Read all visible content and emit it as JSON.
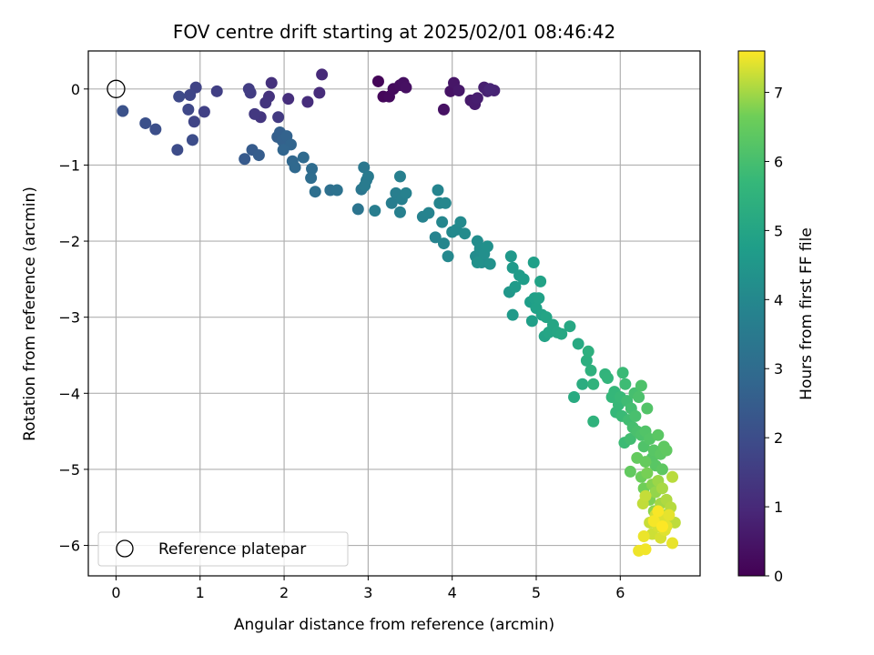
{
  "chart_data": {
    "type": "scatter",
    "title": "FOV centre drift starting at 2025/02/01 08:46:42",
    "xlabel": "Angular distance from reference (arcmin)",
    "ylabel": "Rotation from reference (arcmin)",
    "xlim": [
      -0.33,
      6.95
    ],
    "ylim": [
      -6.4,
      0.5
    ],
    "xticks": [
      0,
      1,
      2,
      3,
      4,
      5,
      6
    ],
    "yticks": [
      0,
      -1,
      -2,
      -3,
      -4,
      -5,
      -6
    ],
    "grid": true,
    "legend": {
      "placement": "bottom-left",
      "entries": [
        "Reference platepar"
      ]
    },
    "reference_point": {
      "x": 0,
      "y": 0
    },
    "colorbar": {
      "label": "Hours from first FF file",
      "colormap": "viridis",
      "range": [
        0,
        7.6
      ],
      "ticks": [
        0,
        1,
        2,
        3,
        4,
        5,
        6,
        7
      ]
    },
    "points": [
      {
        "x": 3.12,
        "y": 0.1,
        "t": 0.1
      },
      {
        "x": 3.18,
        "y": -0.1,
        "t": 0.15
      },
      {
        "x": 3.25,
        "y": -0.1,
        "t": 0.2
      },
      {
        "x": 3.3,
        "y": 0.0,
        "t": 0.25
      },
      {
        "x": 3.38,
        "y": 0.05,
        "t": 0.3
      },
      {
        "x": 3.42,
        "y": 0.08,
        "t": 0.33
      },
      {
        "x": 3.45,
        "y": 0.02,
        "t": 0.36
      },
      {
        "x": 3.9,
        "y": -0.27,
        "t": 0.4
      },
      {
        "x": 3.98,
        "y": -0.03,
        "t": 0.45
      },
      {
        "x": 4.02,
        "y": 0.08,
        "t": 0.5
      },
      {
        "x": 4.08,
        "y": -0.02,
        "t": 0.55
      },
      {
        "x": 4.22,
        "y": -0.15,
        "t": 0.6
      },
      {
        "x": 4.27,
        "y": -0.2,
        "t": 0.65
      },
      {
        "x": 4.3,
        "y": -0.12,
        "t": 0.7
      },
      {
        "x": 4.38,
        "y": 0.02,
        "t": 0.75
      },
      {
        "x": 4.42,
        "y": -0.03,
        "t": 0.8
      },
      {
        "x": 4.5,
        "y": -0.02,
        "t": 0.85
      },
      {
        "x": 4.45,
        "y": 0.0,
        "t": 0.9
      },
      {
        "x": 2.45,
        "y": 0.19,
        "t": 1.0
      },
      {
        "x": 2.42,
        "y": -0.05,
        "t": 1.05
      },
      {
        "x": 2.28,
        "y": -0.17,
        "t": 1.1
      },
      {
        "x": 2.05,
        "y": -0.13,
        "t": 1.15
      },
      {
        "x": 1.85,
        "y": 0.08,
        "t": 1.2
      },
      {
        "x": 1.82,
        "y": -0.1,
        "t": 1.25
      },
      {
        "x": 1.78,
        "y": -0.18,
        "t": 1.3
      },
      {
        "x": 1.72,
        "y": -0.37,
        "t": 1.35
      },
      {
        "x": 1.65,
        "y": -0.33,
        "t": 1.4
      },
      {
        "x": 1.93,
        "y": -0.37,
        "t": 1.45
      },
      {
        "x": 1.6,
        "y": -0.05,
        "t": 1.5
      },
      {
        "x": 1.58,
        "y": 0.0,
        "t": 1.55
      },
      {
        "x": 1.2,
        "y": -0.03,
        "t": 1.6
      },
      {
        "x": 1.05,
        "y": -0.3,
        "t": 1.65
      },
      {
        "x": 0.95,
        "y": 0.02,
        "t": 1.7
      },
      {
        "x": 0.93,
        "y": -0.43,
        "t": 1.75
      },
      {
        "x": 0.88,
        "y": -0.08,
        "t": 1.8
      },
      {
        "x": 0.86,
        "y": -0.27,
        "t": 1.85
      },
      {
        "x": 0.75,
        "y": -0.1,
        "t": 1.9
      },
      {
        "x": 0.73,
        "y": -0.8,
        "t": 1.95
      },
      {
        "x": 0.91,
        "y": -0.67,
        "t": 2.0
      },
      {
        "x": 0.47,
        "y": -0.53,
        "t": 2.05
      },
      {
        "x": 0.35,
        "y": -0.45,
        "t": 2.1
      },
      {
        "x": 0.08,
        "y": -0.29,
        "t": 2.15
      },
      {
        "x": 1.53,
        "y": -0.92,
        "t": 2.4
      },
      {
        "x": 1.62,
        "y": -0.8,
        "t": 2.45
      },
      {
        "x": 1.7,
        "y": -0.87,
        "t": 2.5
      },
      {
        "x": 1.92,
        "y": -0.63,
        "t": 2.55
      },
      {
        "x": 1.95,
        "y": -0.57,
        "t": 2.6
      },
      {
        "x": 1.98,
        "y": -0.68,
        "t": 2.65
      },
      {
        "x": 2.03,
        "y": -0.62,
        "t": 2.7
      },
      {
        "x": 2.08,
        "y": -0.73,
        "t": 2.75
      },
      {
        "x": 1.99,
        "y": -0.8,
        "t": 2.8
      },
      {
        "x": 2.1,
        "y": -0.95,
        "t": 2.85
      },
      {
        "x": 2.13,
        "y": -1.03,
        "t": 2.9
      },
      {
        "x": 2.23,
        "y": -0.9,
        "t": 2.95
      },
      {
        "x": 2.33,
        "y": -1.05,
        "t": 3.0
      },
      {
        "x": 2.32,
        "y": -1.17,
        "t": 3.05
      },
      {
        "x": 2.37,
        "y": -1.35,
        "t": 3.1
      },
      {
        "x": 2.55,
        "y": -1.33,
        "t": 3.15
      },
      {
        "x": 2.63,
        "y": -1.33,
        "t": 3.2
      },
      {
        "x": 2.88,
        "y": -1.58,
        "t": 3.3
      },
      {
        "x": 2.92,
        "y": -1.32,
        "t": 3.35
      },
      {
        "x": 2.95,
        "y": -1.03,
        "t": 3.4
      },
      {
        "x": 2.98,
        "y": -1.2,
        "t": 3.45
      },
      {
        "x": 3.0,
        "y": -1.15,
        "t": 3.5
      },
      {
        "x": 2.96,
        "y": -1.27,
        "t": 3.55
      },
      {
        "x": 3.08,
        "y": -1.6,
        "t": 3.6
      },
      {
        "x": 3.28,
        "y": -1.5,
        "t": 3.62
      },
      {
        "x": 3.33,
        "y": -1.37,
        "t": 3.65
      },
      {
        "x": 3.38,
        "y": -1.15,
        "t": 3.68
      },
      {
        "x": 3.4,
        "y": -1.45,
        "t": 3.7
      },
      {
        "x": 3.38,
        "y": -1.62,
        "t": 3.72
      },
      {
        "x": 3.45,
        "y": -1.37,
        "t": 3.75
      },
      {
        "x": 3.65,
        "y": -1.68,
        "t": 3.8
      },
      {
        "x": 3.72,
        "y": -1.63,
        "t": 3.83
      },
      {
        "x": 3.8,
        "y": -1.95,
        "t": 3.85
      },
      {
        "x": 3.83,
        "y": -1.33,
        "t": 3.88
      },
      {
        "x": 3.85,
        "y": -1.5,
        "t": 3.9
      },
      {
        "x": 3.88,
        "y": -1.75,
        "t": 3.93
      },
      {
        "x": 3.9,
        "y": -2.03,
        "t": 3.95
      },
      {
        "x": 3.92,
        "y": -1.5,
        "t": 3.98
      },
      {
        "x": 3.95,
        "y": -2.2,
        "t": 4.0
      },
      {
        "x": 4.0,
        "y": -1.88,
        "t": 4.03
      },
      {
        "x": 4.05,
        "y": -1.85,
        "t": 4.05
      },
      {
        "x": 4.1,
        "y": -1.75,
        "t": 4.08
      },
      {
        "x": 4.15,
        "y": -1.9,
        "t": 4.1
      },
      {
        "x": 4.28,
        "y": -2.2,
        "t": 4.15
      },
      {
        "x": 4.3,
        "y": -2.0,
        "t": 4.18
      },
      {
        "x": 4.33,
        "y": -2.1,
        "t": 4.2
      },
      {
        "x": 4.35,
        "y": -2.28,
        "t": 4.22
      },
      {
        "x": 4.38,
        "y": -2.17,
        "t": 4.25
      },
      {
        "x": 4.42,
        "y": -2.07,
        "t": 4.28
      },
      {
        "x": 4.45,
        "y": -2.3,
        "t": 4.3
      },
      {
        "x": 4.3,
        "y": -2.28,
        "t": 4.32
      },
      {
        "x": 4.68,
        "y": -2.67,
        "t": 4.5
      },
      {
        "x": 4.7,
        "y": -2.2,
        "t": 4.55
      },
      {
        "x": 4.72,
        "y": -2.97,
        "t": 4.6
      },
      {
        "x": 4.72,
        "y": -2.35,
        "t": 4.62
      },
      {
        "x": 4.75,
        "y": -2.6,
        "t": 4.65
      },
      {
        "x": 4.8,
        "y": -2.45,
        "t": 4.68
      },
      {
        "x": 4.85,
        "y": -2.5,
        "t": 4.7
      },
      {
        "x": 4.93,
        "y": -2.8,
        "t": 4.75
      },
      {
        "x": 4.95,
        "y": -3.05,
        "t": 4.78
      },
      {
        "x": 4.97,
        "y": -2.28,
        "t": 4.8
      },
      {
        "x": 4.98,
        "y": -2.75,
        "t": 4.82
      },
      {
        "x": 5.0,
        "y": -2.88,
        "t": 4.85
      },
      {
        "x": 5.03,
        "y": -2.75,
        "t": 4.88
      },
      {
        "x": 5.05,
        "y": -2.53,
        "t": 4.9
      },
      {
        "x": 5.07,
        "y": -2.97,
        "t": 4.92
      },
      {
        "x": 5.1,
        "y": -3.25,
        "t": 4.95
      },
      {
        "x": 5.12,
        "y": -3.0,
        "t": 4.98
      },
      {
        "x": 5.15,
        "y": -3.2,
        "t": 5.0
      },
      {
        "x": 5.2,
        "y": -3.1,
        "t": 5.03
      },
      {
        "x": 5.25,
        "y": -3.2,
        "t": 5.05
      },
      {
        "x": 5.3,
        "y": -3.22,
        "t": 5.08
      },
      {
        "x": 5.4,
        "y": -3.12,
        "t": 5.1
      },
      {
        "x": 5.5,
        "y": -3.35,
        "t": 5.15
      },
      {
        "x": 5.45,
        "y": -4.05,
        "t": 5.2
      },
      {
        "x": 5.55,
        "y": -3.88,
        "t": 5.3
      },
      {
        "x": 5.6,
        "y": -3.57,
        "t": 5.35
      },
      {
        "x": 5.62,
        "y": -3.45,
        "t": 5.4
      },
      {
        "x": 5.65,
        "y": -3.7,
        "t": 5.45
      },
      {
        "x": 5.68,
        "y": -4.37,
        "t": 5.5
      },
      {
        "x": 5.68,
        "y": -3.88,
        "t": 5.52
      },
      {
        "x": 5.82,
        "y": -3.75,
        "t": 5.55
      },
      {
        "x": 5.85,
        "y": -3.8,
        "t": 5.6
      },
      {
        "x": 5.9,
        "y": -4.05,
        "t": 5.65
      },
      {
        "x": 5.93,
        "y": -3.98,
        "t": 5.68
      },
      {
        "x": 5.95,
        "y": -4.25,
        "t": 5.7
      },
      {
        "x": 5.98,
        "y": -4.15,
        "t": 5.72
      },
      {
        "x": 6.0,
        "y": -4.05,
        "t": 5.75
      },
      {
        "x": 6.02,
        "y": -4.3,
        "t": 5.78
      },
      {
        "x": 6.03,
        "y": -3.73,
        "t": 5.8
      },
      {
        "x": 6.05,
        "y": -4.65,
        "t": 5.82
      },
      {
        "x": 6.06,
        "y": -3.88,
        "t": 5.85
      },
      {
        "x": 6.08,
        "y": -4.1,
        "t": 5.88
      },
      {
        "x": 6.1,
        "y": -4.35,
        "t": 5.9
      },
      {
        "x": 6.12,
        "y": -4.6,
        "t": 5.92
      },
      {
        "x": 6.13,
        "y": -4.2,
        "t": 5.95
      },
      {
        "x": 6.15,
        "y": -4.45,
        "t": 5.98
      },
      {
        "x": 6.17,
        "y": -4.0,
        "t": 6.0
      },
      {
        "x": 6.18,
        "y": -4.3,
        "t": 6.03
      },
      {
        "x": 6.2,
        "y": -4.5,
        "t": 6.05
      },
      {
        "x": 6.22,
        "y": -4.05,
        "t": 6.08
      },
      {
        "x": 6.25,
        "y": -4.55,
        "t": 6.1
      },
      {
        "x": 6.25,
        "y": -3.9,
        "t": 6.12
      },
      {
        "x": 6.28,
        "y": -4.7,
        "t": 6.15
      },
      {
        "x": 6.3,
        "y": -4.5,
        "t": 6.18
      },
      {
        "x": 6.32,
        "y": -4.2,
        "t": 6.2
      },
      {
        "x": 6.35,
        "y": -4.6,
        "t": 6.22
      },
      {
        "x": 6.38,
        "y": -4.85,
        "t": 6.25
      },
      {
        "x": 6.4,
        "y": -4.75,
        "t": 6.28
      },
      {
        "x": 6.42,
        "y": -4.95,
        "t": 6.3
      },
      {
        "x": 6.45,
        "y": -4.55,
        "t": 6.32
      },
      {
        "x": 6.48,
        "y": -4.8,
        "t": 6.35
      },
      {
        "x": 6.5,
        "y": -5.0,
        "t": 6.38
      },
      {
        "x": 6.52,
        "y": -4.7,
        "t": 6.4
      },
      {
        "x": 6.55,
        "y": -4.75,
        "t": 6.42
      },
      {
        "x": 6.12,
        "y": -5.03,
        "t": 6.45
      },
      {
        "x": 6.2,
        "y": -4.85,
        "t": 6.48
      },
      {
        "x": 6.3,
        "y": -4.9,
        "t": 6.5
      },
      {
        "x": 6.25,
        "y": -5.1,
        "t": 6.6
      },
      {
        "x": 6.28,
        "y": -5.25,
        "t": 6.65
      },
      {
        "x": 6.32,
        "y": -5.05,
        "t": 6.7
      },
      {
        "x": 6.35,
        "y": -5.4,
        "t": 6.75
      },
      {
        "x": 6.38,
        "y": -5.2,
        "t": 6.8
      },
      {
        "x": 6.4,
        "y": -5.55,
        "t": 6.85
      },
      {
        "x": 6.42,
        "y": -5.3,
        "t": 6.9
      },
      {
        "x": 6.45,
        "y": -5.15,
        "t": 6.95
      },
      {
        "x": 6.48,
        "y": -5.45,
        "t": 7.0
      },
      {
        "x": 6.5,
        "y": -5.25,
        "t": 7.03
      },
      {
        "x": 6.52,
        "y": -5.6,
        "t": 7.05
      },
      {
        "x": 6.55,
        "y": -5.4,
        "t": 7.08
      },
      {
        "x": 6.58,
        "y": -5.65,
        "t": 7.1
      },
      {
        "x": 6.6,
        "y": -5.5,
        "t": 7.12
      },
      {
        "x": 6.62,
        "y": -5.1,
        "t": 7.15
      },
      {
        "x": 6.65,
        "y": -5.7,
        "t": 7.18
      },
      {
        "x": 6.27,
        "y": -5.45,
        "t": 7.2
      },
      {
        "x": 6.3,
        "y": -5.35,
        "t": 7.22
      },
      {
        "x": 6.35,
        "y": -5.7,
        "t": 7.25
      },
      {
        "x": 6.38,
        "y": -5.85,
        "t": 7.28
      },
      {
        "x": 6.42,
        "y": -5.6,
        "t": 7.3
      },
      {
        "x": 6.45,
        "y": -5.75,
        "t": 7.32
      },
      {
        "x": 6.48,
        "y": -5.9,
        "t": 7.35
      },
      {
        "x": 6.5,
        "y": -5.65,
        "t": 7.38
      },
      {
        "x": 6.53,
        "y": -5.8,
        "t": 7.4
      },
      {
        "x": 6.55,
        "y": -5.75,
        "t": 7.42
      },
      {
        "x": 6.58,
        "y": -5.6,
        "t": 7.44
      },
      {
        "x": 6.62,
        "y": -5.97,
        "t": 7.46
      },
      {
        "x": 6.28,
        "y": -5.88,
        "t": 7.48
      },
      {
        "x": 6.22,
        "y": -6.07,
        "t": 7.5
      },
      {
        "x": 6.3,
        "y": -6.05,
        "t": 7.52
      },
      {
        "x": 6.4,
        "y": -5.68,
        "t": 7.55
      },
      {
        "x": 6.45,
        "y": -5.55,
        "t": 7.57
      },
      {
        "x": 6.5,
        "y": -5.75,
        "t": 7.6
      }
    ]
  }
}
